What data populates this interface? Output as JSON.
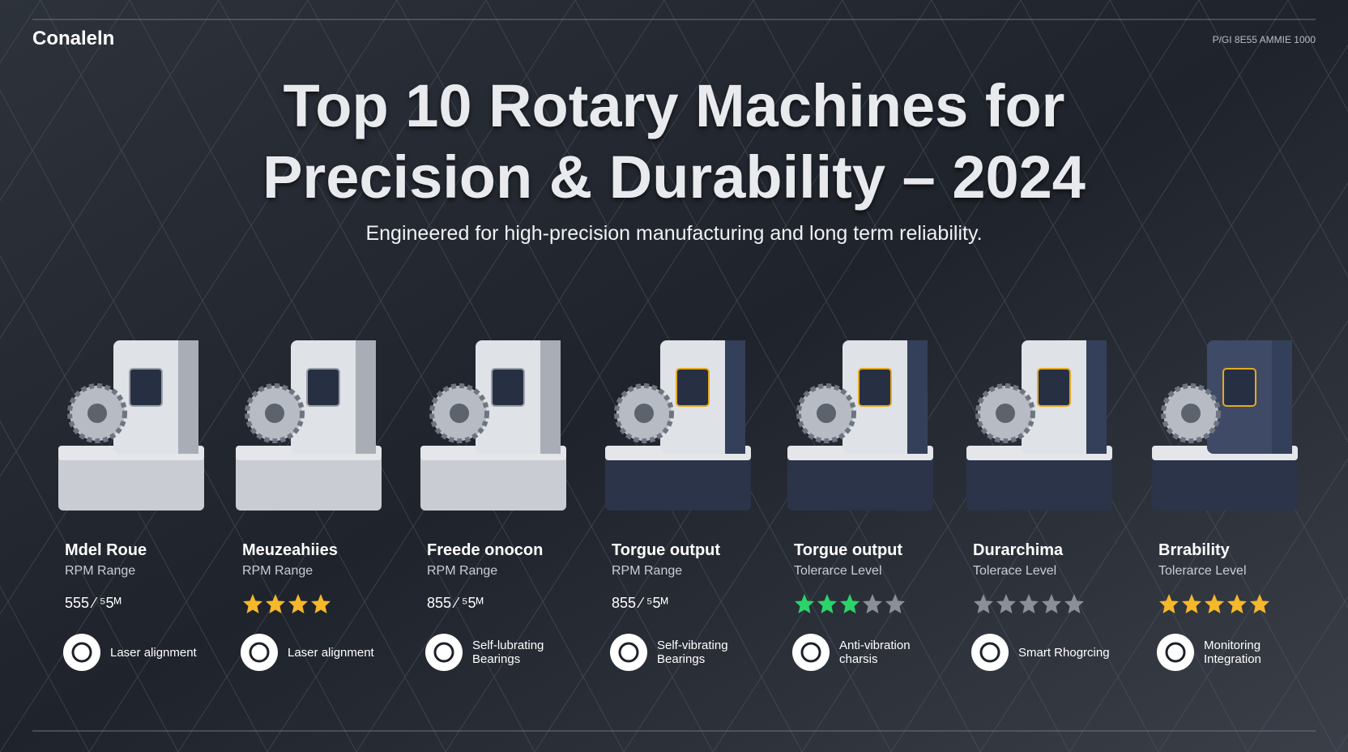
{
  "header": {
    "brand": "Conaleln",
    "top_right": "P/GI 8E55 AMMIE 1000",
    "title_line1": "Top 10 Rotary Machines for",
    "title_line2": "Precision & Durability – 2024",
    "subtitle": "Engineered for high-precision manufacturing and long term reliability."
  },
  "machines": [
    {
      "name": "Mdel Roue",
      "metric": "RPM Range",
      "value": "555 ⁄ ⁵5ᴹ",
      "feature": "Laser alignment"
    },
    {
      "name": "Meuzeahiies",
      "metric": "RPM Range",
      "rating": 4,
      "stars": 4,
      "star_color": "#f5b82a",
      "feature": "Laser alignment"
    },
    {
      "name": "Freede onocon",
      "metric": "RPM Range",
      "value": "855 ⁄ ⁵5ᴹ",
      "feature": "Self-lubrating Bearings"
    },
    {
      "name": "Torgue output",
      "metric": "RPM Range",
      "value": "855 ⁄ ⁵5ᴹ",
      "feature": "Self-vibrating Bearings"
    },
    {
      "name": "Torgue output",
      "metric": "Tolerarce Level",
      "rating": 3,
      "stars": 5,
      "star_color": "#2bd36b",
      "feature": "Anti-vibration charsis"
    },
    {
      "name": "Durarchima",
      "metric": "Tolerace Level",
      "rating": 0,
      "stars": 5,
      "star_color": "#f5b82a",
      "feature": "Smart Rhogrcing"
    },
    {
      "name": "Brrability",
      "metric": "Tolerarce Level",
      "rating": 5,
      "stars": 5,
      "star_color": "#f5b82a",
      "feature": "Monitoring Integration"
    }
  ]
}
